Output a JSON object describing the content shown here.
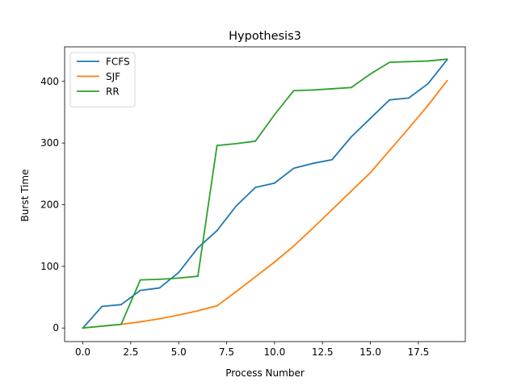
{
  "chart_data": {
    "type": "line",
    "title": "Hypothesis3",
    "xlabel": "Process Number",
    "ylabel": "Burst Time",
    "xlim": [
      -0.95,
      19.95
    ],
    "ylim": [
      -22,
      456
    ],
    "xticks": [
      0.0,
      2.5,
      5.0,
      7.5,
      10.0,
      12.5,
      15.0,
      17.5
    ],
    "xtick_labels": [
      "0.0",
      "2.5",
      "5.0",
      "7.5",
      "10.0",
      "12.5",
      "15.0",
      "17.5"
    ],
    "yticks": [
      0,
      100,
      200,
      300,
      400
    ],
    "ytick_labels": [
      "0",
      "100",
      "200",
      "300",
      "400"
    ],
    "grid": false,
    "legend_position": "top-left",
    "x": [
      0,
      1,
      2,
      3,
      4,
      5,
      6,
      7,
      8,
      9,
      10,
      11,
      12,
      13,
      14,
      15,
      16,
      17,
      18,
      19
    ],
    "series": [
      {
        "name": "FCFS",
        "color": "#1f77b4",
        "values": [
          0,
          35,
          38,
          61,
          65,
          90,
          130,
          158,
          198,
          228,
          235,
          259,
          267,
          273,
          310,
          340,
          370,
          373,
          396,
          435
        ]
      },
      {
        "name": "SJF",
        "color": "#ff7f0e",
        "values": [
          0,
          3,
          6,
          10,
          15,
          21,
          28,
          36,
          59,
          83,
          107,
          133,
          162,
          192,
          222,
          252,
          288,
          324,
          361,
          401
        ]
      },
      {
        "name": "RR",
        "color": "#2ca02c",
        "values": [
          0,
          3,
          6,
          78,
          79,
          81,
          84,
          296,
          299,
          303,
          346,
          385,
          386,
          388,
          390,
          412,
          431,
          432,
          433,
          436
        ]
      }
    ]
  }
}
